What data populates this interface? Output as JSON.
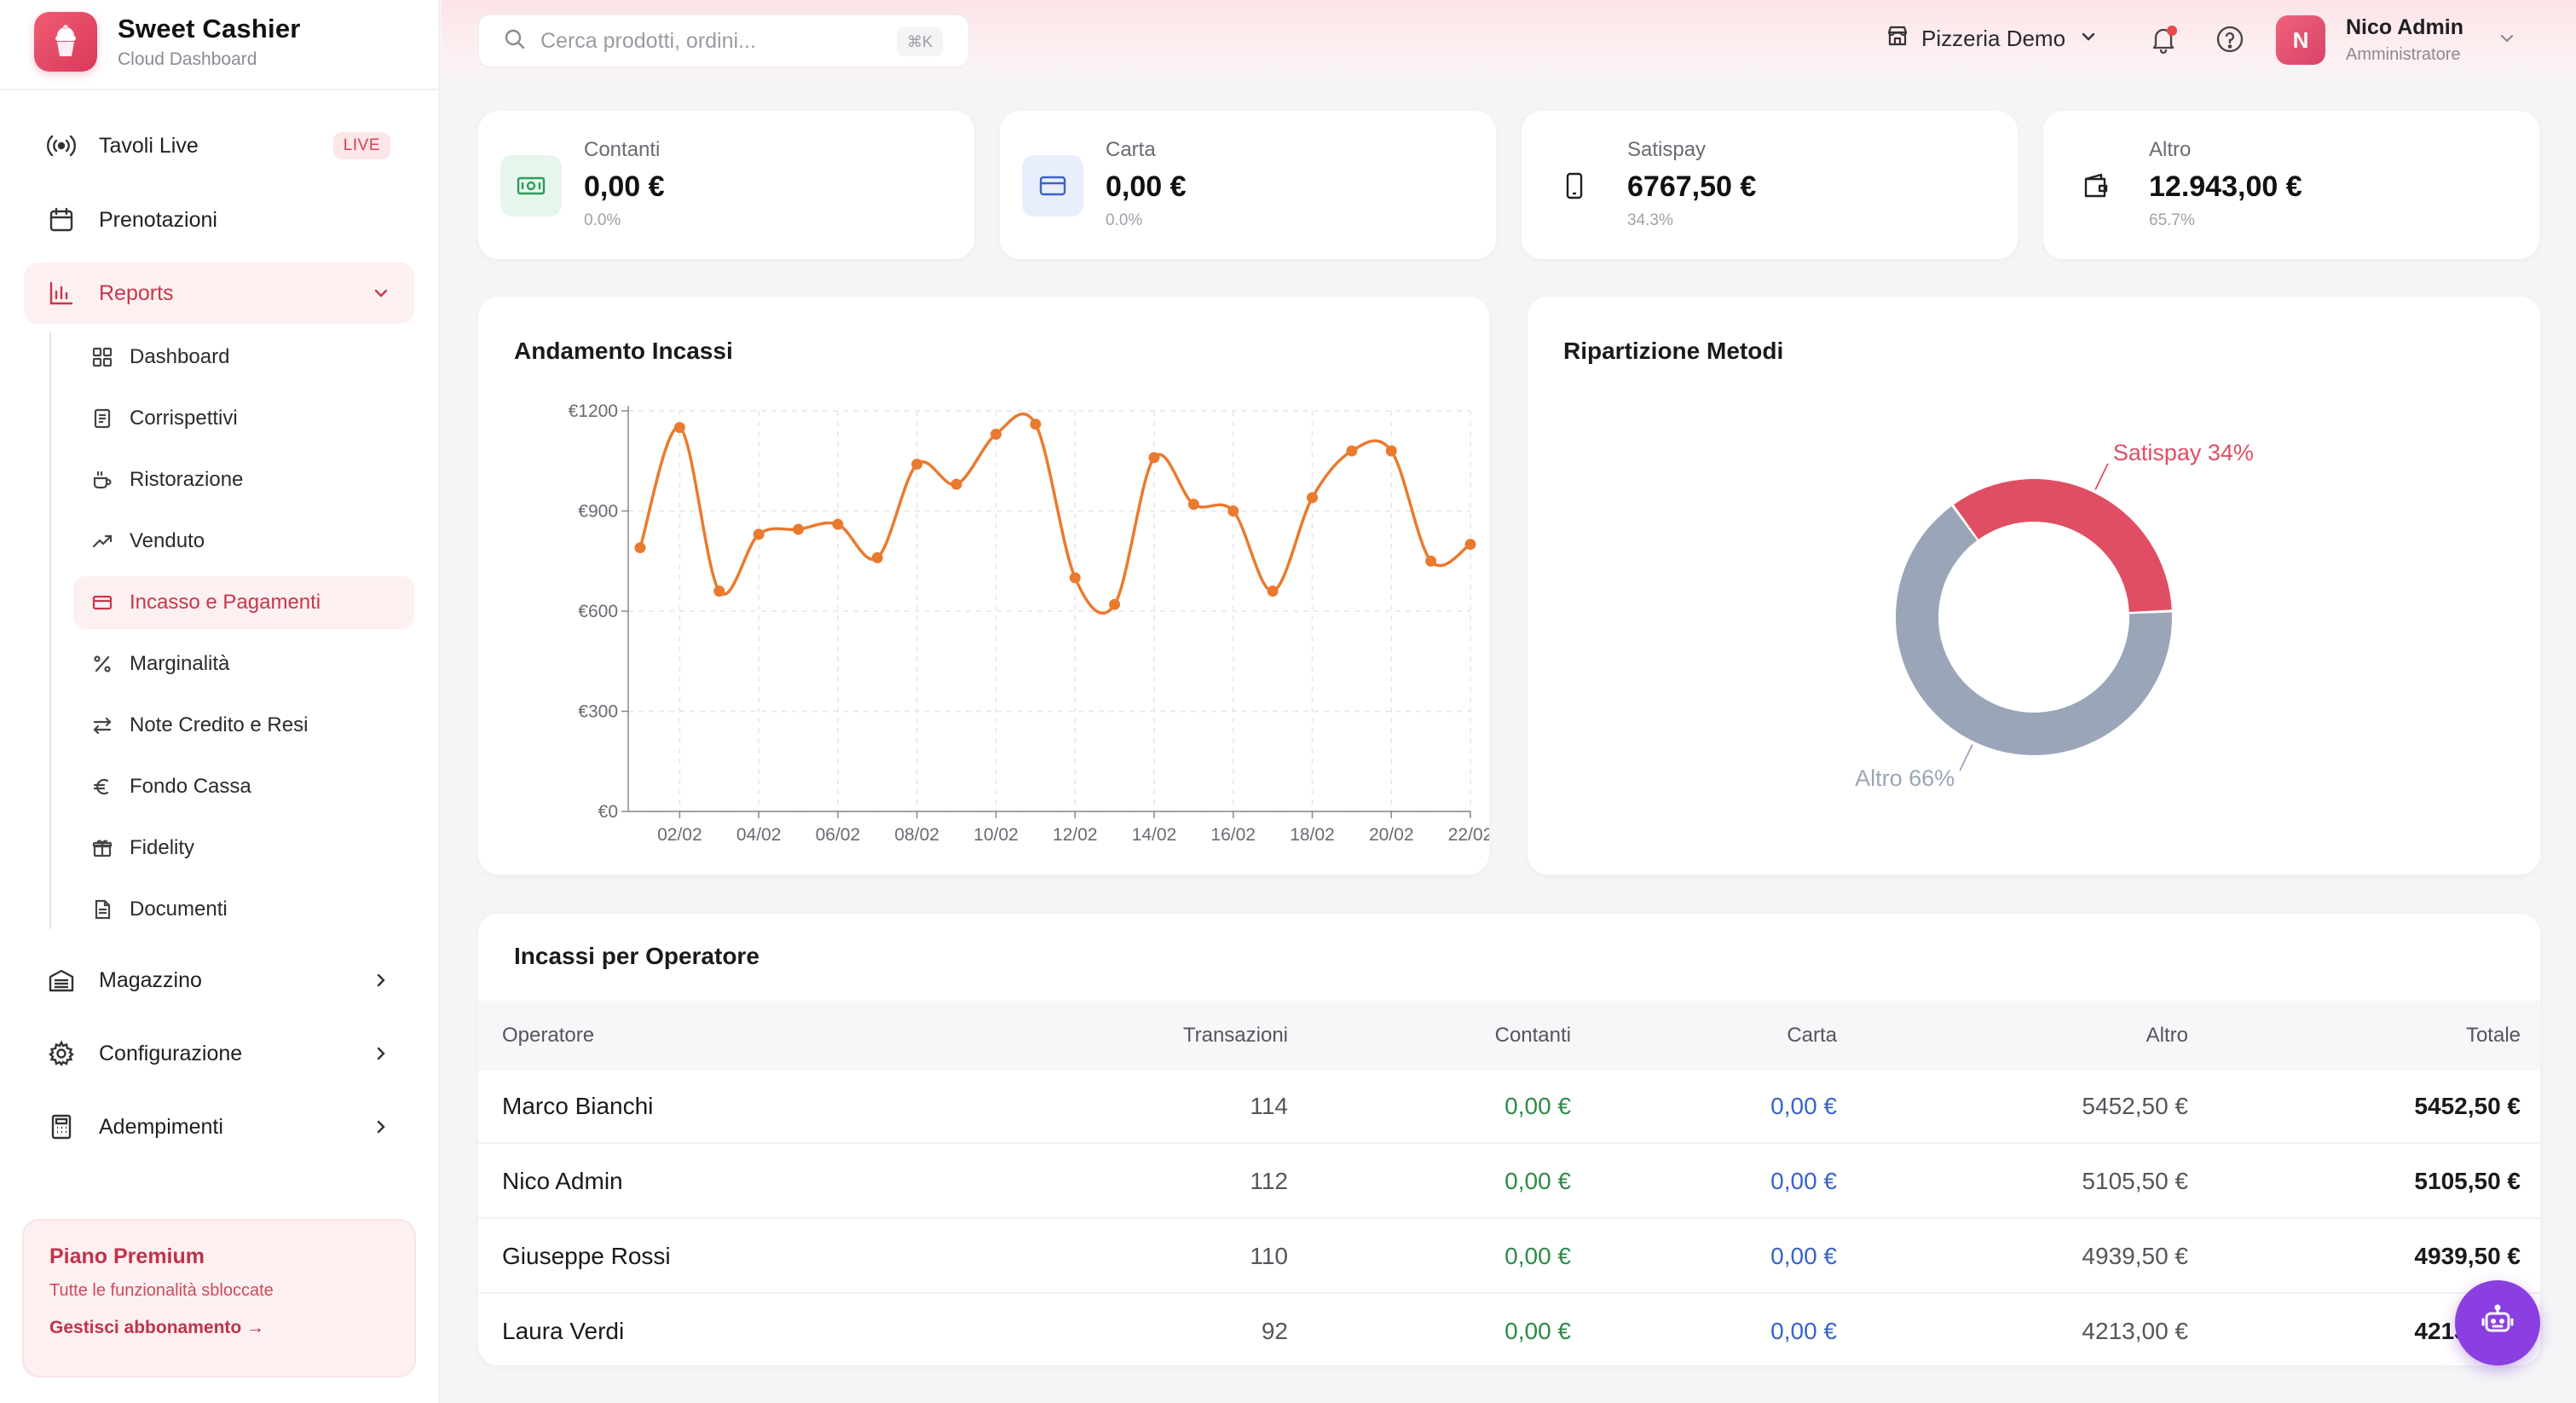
{
  "brand": {
    "title": "Sweet Cashier",
    "subtitle": "Cloud Dashboard"
  },
  "search": {
    "placeholder": "Cerca prodotti, ordini...",
    "shortcut": "⌘K"
  },
  "store": {
    "name": "Pizzeria Demo"
  },
  "user": {
    "initial": "N",
    "name": "Nico Admin",
    "role": "Amministratore"
  },
  "sidebar": {
    "items": [
      {
        "label": "Tavoli Live",
        "badge": "LIVE",
        "icon": "broadcast-icon"
      },
      {
        "label": "Prenotazioni",
        "icon": "calendar-icon"
      },
      {
        "label": "Reports",
        "icon": "bar-chart-icon",
        "active": true
      }
    ],
    "reports_sub": [
      {
        "label": "Dashboard",
        "icon": "grid-icon"
      },
      {
        "label": "Corrispettivi",
        "icon": "receipt-icon"
      },
      {
        "label": "Ristorazione",
        "icon": "coffee-icon"
      },
      {
        "label": "Venduto",
        "icon": "trending-up-icon"
      },
      {
        "label": "Incasso e Pagamenti",
        "icon": "credit-card-icon",
        "active": true
      },
      {
        "label": "Marginalità",
        "icon": "percent-icon"
      },
      {
        "label": "Note Credito e Resi",
        "icon": "swap-icon"
      },
      {
        "label": "Fondo Cassa",
        "icon": "euro-icon"
      },
      {
        "label": "Fidelity",
        "icon": "gift-icon"
      },
      {
        "label": "Documenti",
        "icon": "document-icon"
      }
    ],
    "groups": [
      {
        "label": "Magazzino",
        "icon": "warehouse-icon"
      },
      {
        "label": "Configurazione",
        "icon": "gear-icon"
      },
      {
        "label": "Adempimenti",
        "icon": "calculator-icon"
      }
    ],
    "premium": {
      "title": "Piano Premium",
      "subtitle": "Tutte le funzionalità sbloccate",
      "link": "Gestisci abbonamento →"
    }
  },
  "stats": [
    {
      "label": "Contanti",
      "value": "0,00 €",
      "pct": "0.0%",
      "icon": "cash-icon",
      "color": "#2e9b5a",
      "bg": "#e7f6ec"
    },
    {
      "label": "Carta",
      "value": "0,00 €",
      "pct": "0.0%",
      "icon": "credit-card-icon",
      "color": "#3a63c8",
      "bg": "#e8eefb"
    },
    {
      "label": "Satispay",
      "value": "6767,50 €",
      "pct": "34.3%",
      "icon": "smartphone-icon",
      "color": "#1f1f24",
      "bg": "#ffffff"
    },
    {
      "label": "Altro",
      "value": "12.943,00 €",
      "pct": "65.7%",
      "icon": "wallet-icon",
      "color": "#1f1f24",
      "bg": "#ffffff"
    }
  ],
  "line_title": "Andamento Incassi",
  "pie_title": "Ripartizione Metodi",
  "chart_data": [
    {
      "type": "line",
      "title": "Andamento Incassi",
      "x": [
        "01/02",
        "02/02",
        "03/02",
        "04/02",
        "05/02",
        "06/02",
        "07/02",
        "08/02",
        "09/02",
        "10/02",
        "11/02",
        "12/02",
        "13/02",
        "14/02",
        "15/02",
        "16/02",
        "17/02",
        "18/02",
        "19/02",
        "20/02",
        "21/02",
        "22/02"
      ],
      "x_ticks": [
        "02/02",
        "04/02",
        "06/02",
        "08/02",
        "10/02",
        "12/02",
        "14/02",
        "16/02",
        "18/02",
        "20/02",
        "22/02"
      ],
      "series": [
        {
          "values": [
            790,
            1150,
            660,
            830,
            845,
            860,
            760,
            1040,
            980,
            1130,
            1160,
            700,
            620,
            1060,
            920,
            900,
            660,
            940,
            1080,
            1080,
            750,
            800
          ],
          "color": "#ea7a2e"
        }
      ],
      "yticks": [
        "€0",
        "€300",
        "€600",
        "€900",
        "€1200"
      ],
      "ylim": [
        0,
        1200
      ],
      "grid": true
    },
    {
      "type": "pie",
      "title": "Ripartizione Metodi",
      "slices": [
        {
          "label": "Satispay 34%",
          "value": 34.3,
          "color": "#e04e63"
        },
        {
          "label": "Altro 66%",
          "value": 65.7,
          "color": "#9aa6b8"
        }
      ]
    }
  ],
  "table": {
    "title": "Incassi per Operatore",
    "headers": [
      "Operatore",
      "Transazioni",
      "Contanti",
      "Carta",
      "Altro",
      "Totale"
    ],
    "rows": [
      {
        "op": "Marco Bianchi",
        "tr": "114",
        "co": "0,00 €",
        "ca": "0,00 €",
        "al": "5452,50 €",
        "to": "5452,50 €"
      },
      {
        "op": "Nico Admin",
        "tr": "112",
        "co": "0,00 €",
        "ca": "0,00 €",
        "al": "5105,50 €",
        "to": "5105,50 €"
      },
      {
        "op": "Giuseppe Rossi",
        "tr": "110",
        "co": "0,00 €",
        "ca": "0,00 €",
        "al": "4939,50 €",
        "to": "4939,50 €"
      },
      {
        "op": "Laura Verdi",
        "tr": "92",
        "co": "0,00 €",
        "ca": "0,00 €",
        "al": "4213,00 €",
        "to": "4213,00 €"
      }
    ]
  },
  "fab": {
    "icon": "robot-icon"
  }
}
